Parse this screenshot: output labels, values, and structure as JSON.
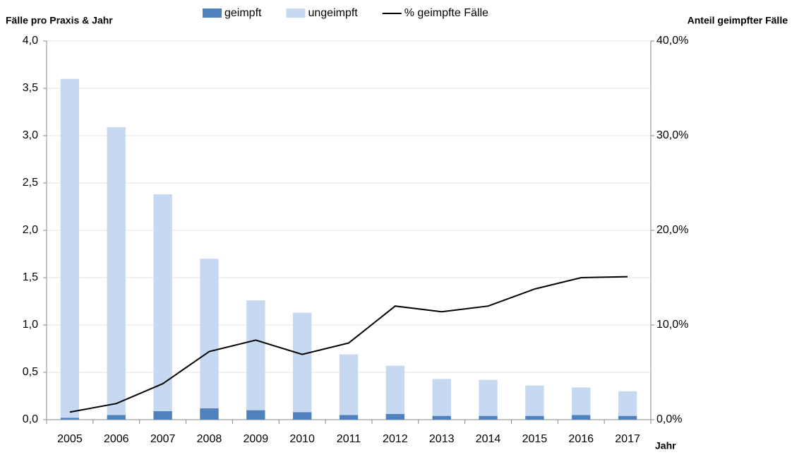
{
  "chart_data": {
    "type": "bar-line",
    "y_label": "Fälle pro Praxis & Jahr",
    "y2_label": "Anteil geimpfter Fälle",
    "x_label": "Jahr",
    "categories": [
      "2005",
      "2006",
      "2007",
      "2008",
      "2009",
      "2010",
      "2011",
      "2012",
      "2013",
      "2014",
      "2015",
      "2016",
      "2017"
    ],
    "series": [
      {
        "name": "geimpft",
        "color": "#4f81bd",
        "stacked": true,
        "values": [
          0.02,
          0.05,
          0.09,
          0.12,
          0.1,
          0.08,
          0.05,
          0.06,
          0.04,
          0.04,
          0.04,
          0.05,
          0.04
        ]
      },
      {
        "name": "ungeimpft",
        "color": "#c6d9f1",
        "stacked": true,
        "values": [
          3.58,
          3.04,
          2.29,
          1.58,
          1.16,
          1.05,
          0.64,
          0.51,
          0.39,
          0.38,
          0.32,
          0.29,
          0.26
        ]
      },
      {
        "name": "% geimpfte Fälle",
        "color": "#000000",
        "axis": "y2",
        "values": [
          0.8,
          1.7,
          3.8,
          7.2,
          8.4,
          6.9,
          8.1,
          12.0,
          11.4,
          12.0,
          13.8,
          15.0,
          15.1
        ]
      }
    ],
    "ylim": [
      0,
      4
    ],
    "yticks": [
      {
        "value": 0,
        "label": "0,0"
      },
      {
        "value": 0.5,
        "label": "0,5"
      },
      {
        "value": 1,
        "label": "1,0"
      },
      {
        "value": 1.5,
        "label": "1,5"
      },
      {
        "value": 2,
        "label": "2,0"
      },
      {
        "value": 2.5,
        "label": "2,5"
      },
      {
        "value": 3,
        "label": "3,0"
      },
      {
        "value": 3.5,
        "label": "3,5"
      },
      {
        "value": 4,
        "label": "4,0"
      }
    ],
    "y2lim": [
      0,
      40
    ],
    "y2ticks": [
      {
        "value": 0,
        "label": "0,0%"
      },
      {
        "value": 10,
        "label": "10,0%"
      },
      {
        "value": 20,
        "label": "20,0%"
      },
      {
        "value": 30,
        "label": "30,0%"
      },
      {
        "value": 40,
        "label": "40,0%"
      }
    ],
    "grid": true,
    "legend": "top"
  }
}
